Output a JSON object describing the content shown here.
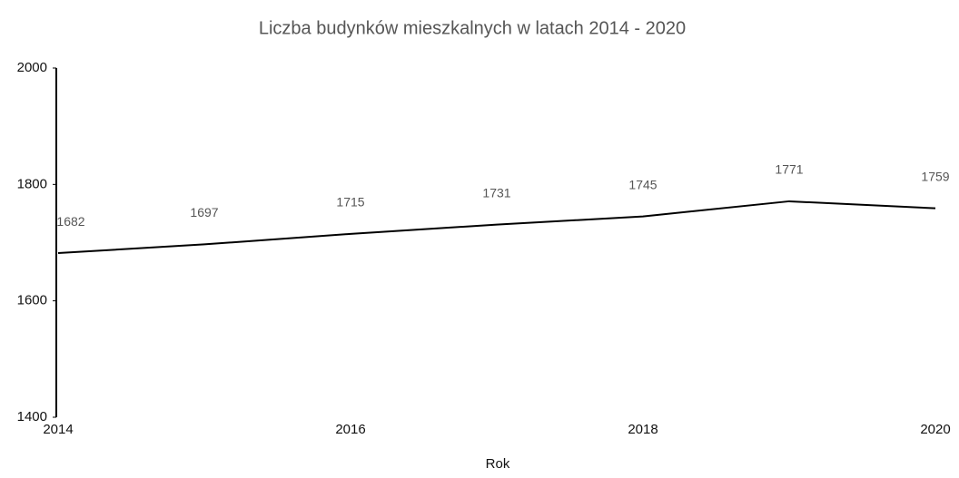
{
  "chart_data": {
    "type": "line",
    "title": "Liczba budynków mieszkalnych w latach 2014 - 2020",
    "x_label": "Rok",
    "x": [
      2014,
      2015,
      2016,
      2017,
      2018,
      2019,
      2020
    ],
    "series": [
      {
        "name": "Liczba budynków",
        "color": "#000000",
        "values": [
          1682,
          1697,
          1715,
          1731,
          1745,
          1771,
          1759
        ]
      }
    ],
    "xlim": [
      2014,
      2020
    ],
    "xticks": [
      2014,
      2016,
      2018,
      2020
    ],
    "ylim": [
      1400,
      2000
    ],
    "yticks": [
      1400,
      1600,
      1800,
      2000
    ],
    "grid": false
  }
}
